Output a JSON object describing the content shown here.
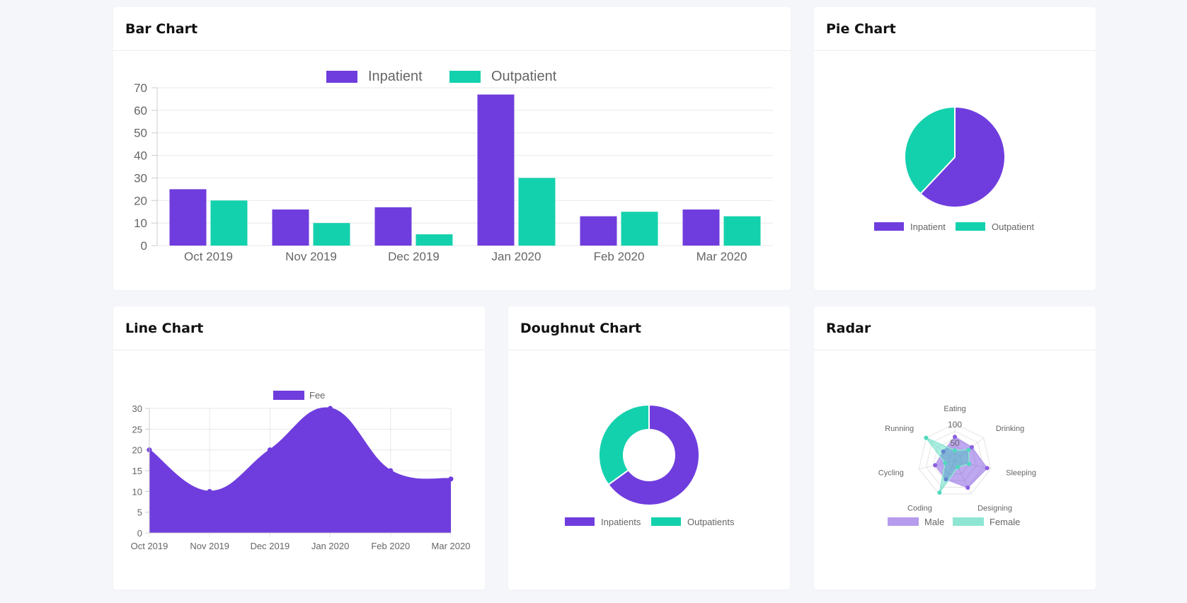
{
  "colors": {
    "inpatient": "#6f3ddd",
    "outpatient": "#14d1ad",
    "male": "#b79bec",
    "female": "#8ee6d2",
    "grid": "#e8e8e8",
    "axis_text": "#666666"
  },
  "cards": {
    "bar": {
      "title": "Bar Chart"
    },
    "pie": {
      "title": "Pie Chart"
    },
    "line": {
      "title": "Line Chart"
    },
    "doughnut": {
      "title": "Doughnut Chart"
    },
    "radar": {
      "title": "Radar"
    }
  },
  "chart_data": [
    {
      "id": "bar",
      "type": "bar",
      "title": "Bar Chart",
      "categories": [
        "Oct 2019",
        "Nov 2019",
        "Dec 2019",
        "Jan 2020",
        "Feb 2020",
        "Mar 2020"
      ],
      "series": [
        {
          "name": "Inpatient",
          "values": [
            25,
            16,
            17,
            67,
            13,
            16
          ]
        },
        {
          "name": "Outpatient",
          "values": [
            20,
            10,
            5,
            30,
            15,
            13
          ]
        }
      ],
      "ylim": [
        0,
        70
      ],
      "yticks": [
        0,
        10,
        20,
        30,
        40,
        50,
        60,
        70
      ],
      "legend": "top",
      "grid": true
    },
    {
      "id": "pie",
      "type": "pie",
      "title": "Pie Chart",
      "labels": [
        "Inpatient",
        "Outpatient"
      ],
      "values": [
        62,
        38
      ],
      "legend": "bottom"
    },
    {
      "id": "line",
      "type": "area",
      "title": "Line Chart",
      "x": [
        "Oct 2019",
        "Nov 2019",
        "Dec 2019",
        "Jan 2020",
        "Feb 2020",
        "Mar 2020"
      ],
      "series": [
        {
          "name": "Fee",
          "values": [
            20,
            10,
            20,
            30,
            15,
            13
          ]
        }
      ],
      "ylim": [
        0,
        30
      ],
      "yticks": [
        0,
        5,
        10,
        15,
        20,
        25,
        30
      ],
      "legend": "top",
      "grid": true
    },
    {
      "id": "doughnut",
      "type": "pie",
      "title": "Doughnut Chart",
      "labels": [
        "Inpatients",
        "Outpatients"
      ],
      "values": [
        65,
        35
      ],
      "legend": "bottom"
    },
    {
      "id": "radar",
      "type": "radar",
      "title": "Radar",
      "labels": [
        "Eating",
        "Drinking",
        "Sleeping",
        "Designing",
        "Coding",
        "Cycling",
        "Running"
      ],
      "series": [
        {
          "name": "Male",
          "values": [
            65,
            59,
            90,
            81,
            56,
            55,
            40
          ]
        },
        {
          "name": "Female",
          "values": [
            28,
            48,
            40,
            19,
            96,
            27,
            100
          ]
        }
      ],
      "rlim": [
        0,
        100
      ],
      "rticks": [
        50,
        100
      ],
      "legend": "bottom"
    }
  ]
}
